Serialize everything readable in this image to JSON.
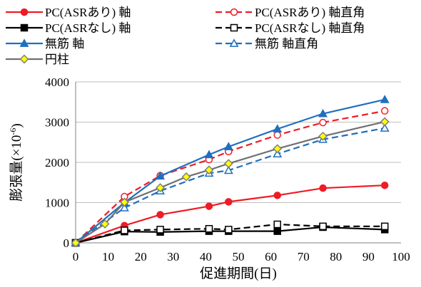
{
  "chart_data": {
    "type": "line",
    "xlabel": "促進期間(日)",
    "ylabel": "膨張量(×10",
    "ylabel_sup": "-6",
    "ylabel_close": ")",
    "xlim": [
      0,
      100
    ],
    "ylim": [
      0,
      4000
    ],
    "x_ticks": [
      "0",
      "10",
      "20",
      "30",
      "40",
      "50",
      "60",
      "70",
      "80",
      "90",
      "100"
    ],
    "y_ticks": [
      "0",
      "1000",
      "2000",
      "3000",
      "4000"
    ],
    "grid": "horizontal",
    "legend_position": "top",
    "series": [
      {
        "name": "PC(ASRあり) 軸",
        "color": "#ee1c25",
        "dash": "solid",
        "marker": "circle",
        "marker_fill": "filled",
        "x": [
          0,
          15,
          26,
          41,
          47,
          62,
          76,
          95
        ],
        "y": [
          0,
          430,
          700,
          910,
          1020,
          1180,
          1360,
          1430
        ]
      },
      {
        "name": "PC(ASRあり) 軸直角",
        "color": "#ee1c25",
        "dash": "dashed",
        "marker": "circle",
        "marker_fill": "hollow",
        "x": [
          0,
          15,
          26,
          41,
          47,
          62,
          76,
          95
        ],
        "y": [
          0,
          1150,
          1670,
          2070,
          2270,
          2680,
          2990,
          3280
        ]
      },
      {
        "name": "PC(ASRなし) 軸",
        "color": "#000000",
        "dash": "solid",
        "marker": "square",
        "marker_fill": "filled",
        "x": [
          0,
          15,
          26,
          41,
          47,
          62,
          76,
          95
        ],
        "y": [
          0,
          280,
          270,
          290,
          290,
          290,
          390,
          330
        ]
      },
      {
        "name": "PC(ASRなし) 軸直角",
        "color": "#000000",
        "dash": "dashed",
        "marker": "square",
        "marker_fill": "hollow",
        "x": [
          0,
          15,
          26,
          41,
          47,
          62,
          76,
          95
        ],
        "y": [
          0,
          310,
          330,
          350,
          330,
          460,
          410,
          410
        ]
      },
      {
        "name": "無筋 軸",
        "color": "#1f6fbf",
        "dash": "solid",
        "marker": "triangle",
        "marker_fill": "filled",
        "x": [
          0,
          15,
          26,
          41,
          47,
          62,
          76,
          95
        ],
        "y": [
          0,
          1000,
          1660,
          2190,
          2390,
          2830,
          3210,
          3560
        ]
      },
      {
        "name": "無筋 軸直角",
        "color": "#1f6fbf",
        "dash": "dashed",
        "marker": "triangle",
        "marker_fill": "hollow",
        "x": [
          0,
          15,
          26,
          41,
          47,
          62,
          76,
          95
        ],
        "y": [
          0,
          870,
          1290,
          1730,
          1800,
          2210,
          2570,
          2850
        ]
      },
      {
        "name": "円柱",
        "color": "#707070",
        "dash": "solid",
        "marker": "diamond",
        "marker_fill": "yellow",
        "x": [
          0,
          9,
          15,
          26,
          34,
          41,
          47,
          62,
          76,
          95
        ],
        "y": [
          0,
          470,
          1010,
          1370,
          1640,
          1810,
          1970,
          2340,
          2650,
          3010
        ]
      }
    ]
  }
}
